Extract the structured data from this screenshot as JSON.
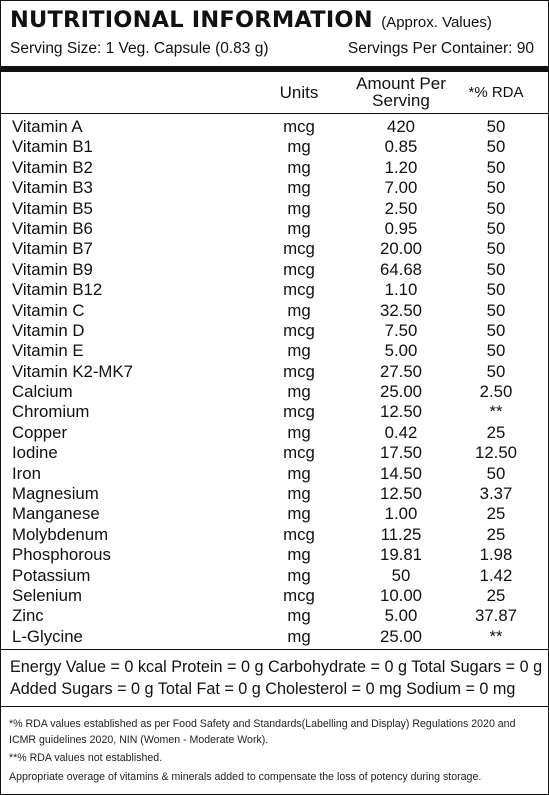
{
  "header": {
    "title": "NUTRITIONAL INFORMATION",
    "note": "(Approx. Values)",
    "serving_size": "Serving Size: 1 Veg. Capsule (0.83 g)",
    "servings_per_container": "Servings Per Container: 90"
  },
  "table": {
    "col_units": "Units",
    "col_amount_line1": "Amount Per",
    "col_amount_line2": "Serving",
    "col_rda": "*% RDA",
    "rows": [
      {
        "name": "Vitamin A",
        "unit": "mcg",
        "amount": "420",
        "rda": "50"
      },
      {
        "name": "Vitamin B1",
        "unit": "mg",
        "amount": "0.85",
        "rda": "50"
      },
      {
        "name": "Vitamin B2",
        "unit": "mg",
        "amount": "1.20",
        "rda": "50"
      },
      {
        "name": "Vitamin B3",
        "unit": "mg",
        "amount": "7.00",
        "rda": "50"
      },
      {
        "name": "Vitamin B5",
        "unit": "mg",
        "amount": "2.50",
        "rda": "50"
      },
      {
        "name": "Vitamin B6",
        "unit": "mg",
        "amount": "0.95",
        "rda": "50"
      },
      {
        "name": "Vitamin B7",
        "unit": "mcg",
        "amount": "20.00",
        "rda": "50"
      },
      {
        "name": "Vitamin B9",
        "unit": "mcg",
        "amount": "64.68",
        "rda": "50"
      },
      {
        "name": "Vitamin B12",
        "unit": "mcg",
        "amount": "1.10",
        "rda": "50"
      },
      {
        "name": "Vitamin C",
        "unit": "mg",
        "amount": "32.50",
        "rda": "50"
      },
      {
        "name": "Vitamin D",
        "unit": "mcg",
        "amount": "7.50",
        "rda": "50"
      },
      {
        "name": "Vitamin E",
        "unit": "mg",
        "amount": "5.00",
        "rda": "50"
      },
      {
        "name": "Vitamin K2-MK7",
        "unit": "mcg",
        "amount": "27.50",
        "rda": "50"
      },
      {
        "name": "Calcium",
        "unit": "mg",
        "amount": "25.00",
        "rda": "2.50"
      },
      {
        "name": "Chromium",
        "unit": "mcg",
        "amount": "12.50",
        "rda": "**"
      },
      {
        "name": "Copper",
        "unit": "mg",
        "amount": "0.42",
        "rda": "25"
      },
      {
        "name": "Iodine",
        "unit": "mcg",
        "amount": "17.50",
        "rda": "12.50"
      },
      {
        "name": "Iron",
        "unit": "mg",
        "amount": "14.50",
        "rda": "50"
      },
      {
        "name": "Magnesium",
        "unit": "mg",
        "amount": "12.50",
        "rda": "3.37"
      },
      {
        "name": "Manganese",
        "unit": "mg",
        "amount": "1.00",
        "rda": "25"
      },
      {
        "name": "Molybdenum",
        "unit": "mcg",
        "amount": "11.25",
        "rda": "25"
      },
      {
        "name": "Phosphorous",
        "unit": "mg",
        "amount": "19.81",
        "rda": "1.98"
      },
      {
        "name": "Potassium",
        "unit": "mg",
        "amount": "50",
        "rda": "1.42"
      },
      {
        "name": "Selenium",
        "unit": "mcg",
        "amount": "10.00",
        "rda": "25"
      },
      {
        "name": "Zinc",
        "unit": "mg",
        "amount": "5.00",
        "rda": "37.87"
      },
      {
        "name": "L-Glycine",
        "unit": "mg",
        "amount": "25.00",
        "rda": "**"
      }
    ]
  },
  "summary": {
    "line1": "Energy Value = 0 kcal Protein = 0 g Carbohydrate = 0 g Total Sugars = 0 g",
    "line2": "Added Sugars = 0 g Total Fat = 0 g Cholesterol = 0 mg Sodium = 0 mg"
  },
  "footnotes": {
    "rda_basis": "*% RDA values established as per Food Safety and Standards(Labelling and Display) Regulations 2020 and ICMR guidelines 2020, NIN (Women - Moderate Work).",
    "rda_not_established": "**% RDA values not established.",
    "overage": "Appropriate overage of vitamins & minerals added to compensate the loss of potency during storage."
  }
}
